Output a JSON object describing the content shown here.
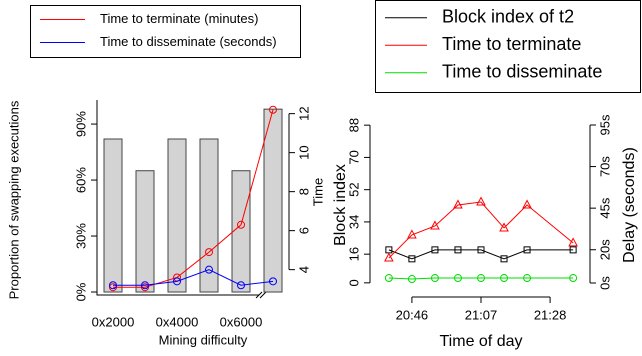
{
  "chart_data": [
    {
      "type": "bar",
      "categories": [
        "0x2000",
        null,
        "0x4000",
        null,
        "0x6000",
        null
      ],
      "values": [
        82,
        65,
        82,
        82,
        65,
        98
      ],
      "color": "#d3d3d3",
      "xlabel": "Mining difficulty",
      "ylabel": "Proportion of swapping executions",
      "y2label": "Time",
      "ylim": [
        -1.6,
        102.9
      ],
      "yticks": [
        {
          "value": 0,
          "label": "0%"
        },
        {
          "value": 30,
          "label": "30%"
        },
        {
          "value": 60,
          "label": "60%"
        },
        {
          "value": 90,
          "label": "90%"
        }
      ],
      "y2lim": [
        2.7,
        12.7
      ],
      "y2ticks": [
        4,
        6,
        8,
        10,
        12
      ],
      "marker": "circle",
      "series": [
        {
          "name": "Time to terminate (minutes)",
          "color": "#ff0000",
          "axis": "y2",
          "values": [
            3.1,
            3.1,
            3.6,
            4.9,
            6.3,
            12.2
          ]
        },
        {
          "name": "Time to disseminate (seconds)",
          "color": "#0000ff",
          "axis": "y2",
          "values": [
            3.2,
            3.2,
            3.4,
            4.0,
            3.2,
            3.4
          ]
        }
      ]
    },
    {
      "type": "line",
      "x": [
        1239,
        1246,
        1253,
        1260,
        1267,
        1274,
        1281,
        1295
      ],
      "xlabel": "Time of day",
      "ylabel": "Block index",
      "y2label": "Delay (seconds)",
      "xlim": [
        1236,
        1298
      ],
      "xticks": [
        {
          "value": 1246,
          "label": "20:46"
        },
        {
          "value": 1267,
          "label": "21:07"
        },
        {
          "value": 1288,
          "label": "21:28"
        }
      ],
      "ylim": [
        -4,
        92
      ],
      "yticks": [
        0,
        16,
        34,
        52,
        70,
        88
      ],
      "y2lim": [
        -4.2,
        99.2
      ],
      "y2ticks": [
        {
          "value": 0,
          "label": "0s"
        },
        {
          "value": 20,
          "label": "20s"
        },
        {
          "value": 45,
          "label": "45s"
        },
        {
          "value": 70,
          "label": "70s"
        },
        {
          "value": 95,
          "label": "95s"
        }
      ],
      "series": [
        {
          "name": "Block index of t2",
          "color": "#000000",
          "marker": "square",
          "values": [
            18.4,
            13.4,
            18.4,
            18.4,
            18.4,
            13.4,
            18.4,
            18.4
          ]
        },
        {
          "name": "Time to terminate",
          "color": "#ff0000",
          "marker": "triangle",
          "axis": "y2",
          "values": [
            15.0,
            28.9,
            34.3,
            46.9,
            48.7,
            33.1,
            46.9,
            24.1
          ]
        },
        {
          "name": "Time to disseminate",
          "color": "#00dd00",
          "marker": "circle",
          "axis": "y2",
          "values": [
            3.0,
            2.4,
            3.0,
            3.0,
            3.0,
            3.0,
            3.0,
            3.0
          ]
        }
      ]
    }
  ]
}
